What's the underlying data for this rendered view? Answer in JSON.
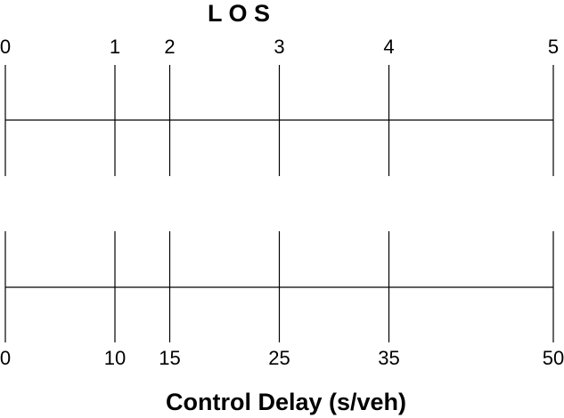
{
  "title": "L O S",
  "xlabel": "Control Delay (s/veh)",
  "chart_data": {
    "type": "scale-mapping",
    "title": "L O S",
    "xlabel": "Control Delay (s/veh)",
    "los_scale": {
      "values": [
        0,
        1,
        2,
        3,
        4,
        5
      ],
      "labels": [
        "0",
        "1",
        "2",
        "3",
        "4",
        "5"
      ]
    },
    "delay_scale": {
      "values": [
        0,
        10,
        15,
        25,
        35,
        50
      ],
      "labels": [
        "0",
        "10",
        "15",
        "25",
        "35",
        "50"
      ]
    },
    "delay_range": [
      0,
      50
    ]
  }
}
